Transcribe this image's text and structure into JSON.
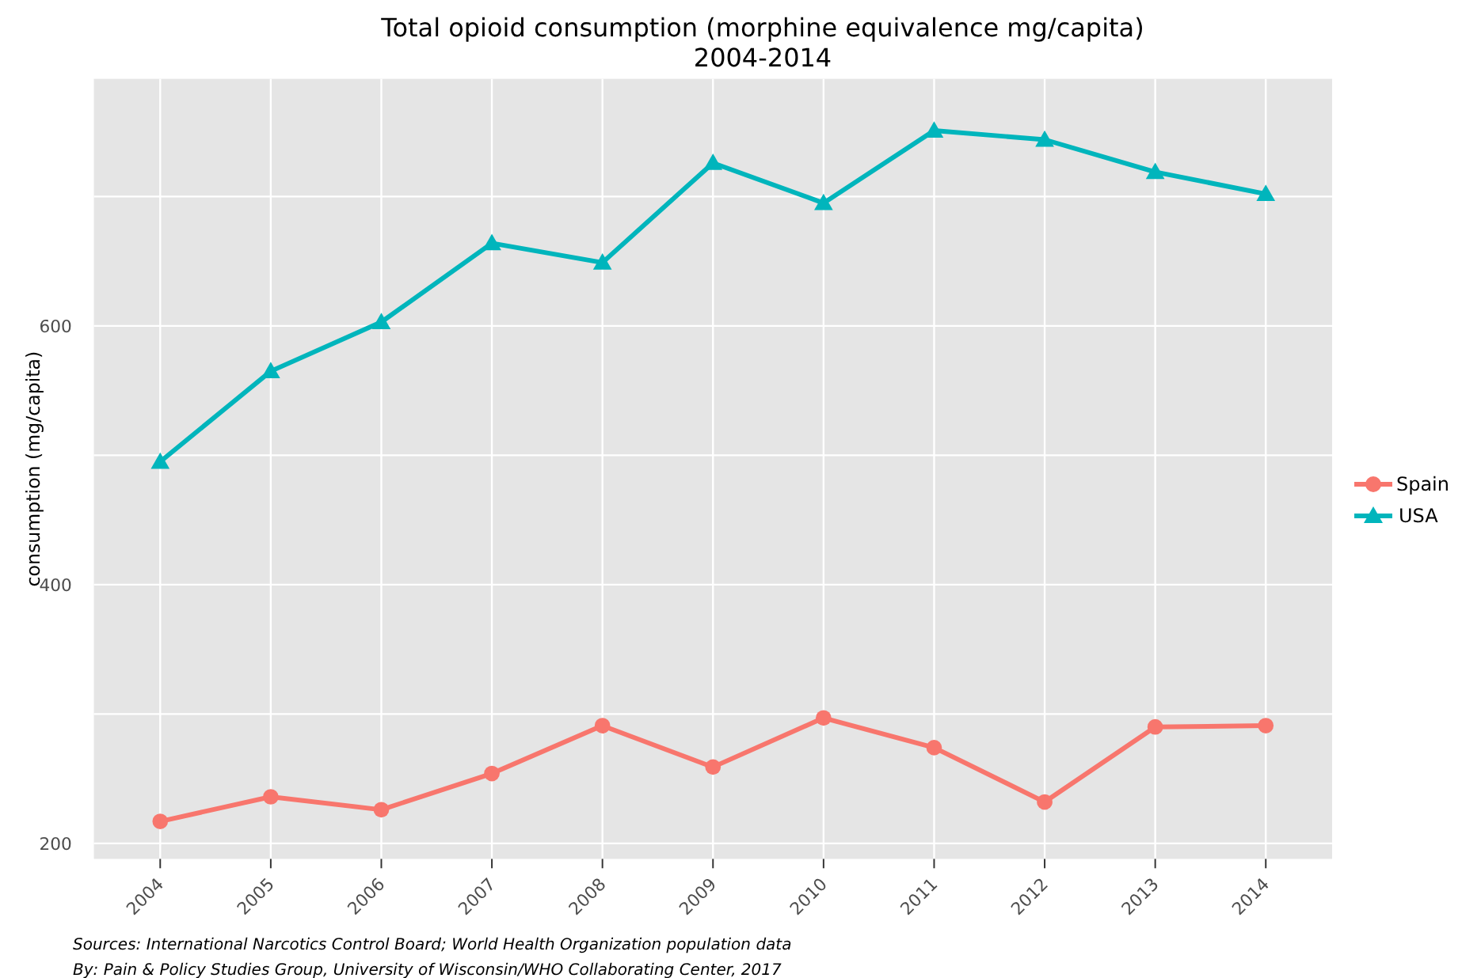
{
  "chart_data": {
    "type": "line",
    "title": "Total opioid consumption (morphine equivalence mg/capita)\n2004-2014",
    "ylabel": "consumption (mg/capita)",
    "categories": [
      "2004",
      "2005",
      "2006",
      "2007",
      "2008",
      "2009",
      "2010",
      "2011",
      "2012",
      "2013",
      "2014"
    ],
    "series": [
      {
        "name": "Spain",
        "color": "#f8766d",
        "marker": "circle",
        "values": [
          217,
          236,
          226,
          254,
          291,
          259,
          297,
          274,
          232,
          290,
          291
        ]
      },
      {
        "name": "USA",
        "color": "#00b5bc",
        "marker": "triangle",
        "values": [
          495,
          565,
          603,
          664,
          649,
          726,
          695,
          751,
          744,
          719,
          702
        ]
      }
    ],
    "ylim": [
      188,
      791
    ],
    "yticks": [
      200,
      {
        "value": 300,
        "label": null
      },
      400,
      {
        "value": 500,
        "label": null
      },
      600,
      {
        "value": 700,
        "label": null
      }
    ],
    "grid": true,
    "legend": "right",
    "line_style": "solid",
    "annotations": [
      "Sources: International Narcotics Control Board; World Health Organization population data",
      "By: Pain & Policy Studies Group, University of Wisconsin/WHO Collaborating Center, 2017"
    ]
  }
}
